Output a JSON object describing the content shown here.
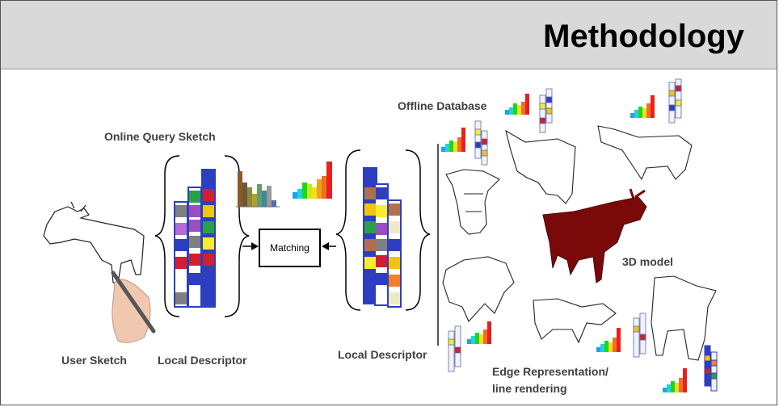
{
  "title": "Methodology",
  "labels": {
    "online_query": "Online Query Sketch",
    "offline_database": "Offline Database",
    "user_sketch": "User Sketch",
    "local_descriptor_left": "Local Descriptor",
    "local_descriptor_right": "Local Descriptor",
    "matching": "Matching",
    "model_3d": "3D model",
    "edge_rep_line1": "Edge Representation/",
    "edge_rep_line2": "line rendering"
  },
  "colors": {
    "header_bg": "#d9d9d9",
    "descriptor_border": "#2d3fbf",
    "model": "#7a0a0a"
  }
}
